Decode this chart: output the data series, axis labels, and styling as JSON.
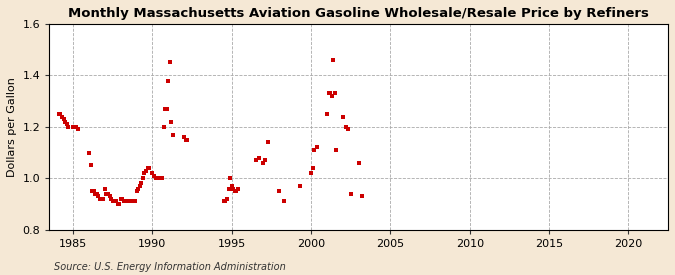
{
  "title": "Monthly Massachusetts Aviation Gasoline Wholesale/Resale Price by Refiners",
  "ylabel": "Dollars per Gallon",
  "source": "Source: U.S. Energy Information Administration",
  "fig_background_color": "#f5e8d5",
  "plot_background_color": "#ffffff",
  "xlim": [
    1983.5,
    2022.5
  ],
  "ylim": [
    0.8,
    1.6
  ],
  "xticks": [
    1985,
    1990,
    1995,
    2000,
    2005,
    2010,
    2015,
    2020
  ],
  "yticks": [
    0.8,
    1.0,
    1.2,
    1.4,
    1.6
  ],
  "marker_color": "#cc0000",
  "marker_size": 3.5,
  "data_x": [
    1984.1,
    1984.2,
    1984.3,
    1984.4,
    1984.5,
    1984.6,
    1984.7,
    1985.0,
    1985.1,
    1985.2,
    1985.3,
    1986.0,
    1986.1,
    1986.2,
    1986.3,
    1986.4,
    1986.5,
    1986.6,
    1986.7,
    1986.8,
    1986.9,
    1987.0,
    1987.1,
    1987.2,
    1987.3,
    1987.4,
    1987.5,
    1987.6,
    1987.7,
    1987.8,
    1987.9,
    1988.0,
    1988.1,
    1988.2,
    1988.3,
    1988.4,
    1988.5,
    1988.6,
    1988.7,
    1988.8,
    1988.9,
    1989.0,
    1989.1,
    1989.2,
    1989.3,
    1989.4,
    1989.5,
    1989.6,
    1989.7,
    1989.8,
    1990.0,
    1990.1,
    1990.2,
    1990.3,
    1990.4,
    1990.5,
    1990.6,
    1990.7,
    1990.8,
    1990.9,
    1991.0,
    1991.1,
    1991.2,
    1991.3,
    1992.0,
    1992.1,
    1992.2,
    1994.5,
    1994.6,
    1994.7,
    1994.8,
    1994.9,
    1995.0,
    1995.1,
    1995.2,
    1995.3,
    1995.4,
    1996.5,
    1996.7,
    1997.0,
    1997.1,
    1997.3,
    1998.0,
    1998.3,
    1999.3,
    2000.0,
    2000.1,
    2000.2,
    2000.4,
    2001.0,
    2001.1,
    2001.2,
    2001.3,
    2001.4,
    2001.5,
    2001.6,
    2002.0,
    2002.2,
    2002.3,
    2002.5,
    2003.0,
    2003.2
  ],
  "data_y": [
    1.25,
    1.25,
    1.24,
    1.23,
    1.22,
    1.21,
    1.2,
    1.2,
    1.2,
    1.2,
    1.19,
    1.1,
    1.05,
    0.95,
    0.95,
    0.94,
    0.94,
    0.93,
    0.92,
    0.92,
    0.92,
    0.96,
    0.94,
    0.94,
    0.93,
    0.92,
    0.91,
    0.91,
    0.91,
    0.9,
    0.9,
    0.92,
    0.92,
    0.91,
    0.91,
    0.91,
    0.91,
    0.91,
    0.91,
    0.91,
    0.91,
    0.95,
    0.96,
    0.97,
    0.98,
    1.0,
    1.02,
    1.03,
    1.04,
    1.04,
    1.02,
    1.01,
    1.0,
    1.0,
    1.0,
    1.0,
    1.0,
    1.2,
    1.27,
    1.27,
    1.38,
    1.45,
    1.22,
    1.17,
    1.16,
    1.15,
    1.15,
    0.91,
    0.91,
    0.92,
    0.96,
    1.0,
    0.97,
    0.96,
    0.95,
    0.95,
    0.96,
    1.07,
    1.08,
    1.06,
    1.07,
    1.14,
    0.95,
    0.91,
    0.97,
    1.02,
    1.04,
    1.11,
    1.12,
    1.25,
    1.33,
    1.33,
    1.32,
    1.46,
    1.33,
    1.11,
    1.24,
    1.2,
    1.19,
    0.94,
    1.06,
    0.93
  ]
}
